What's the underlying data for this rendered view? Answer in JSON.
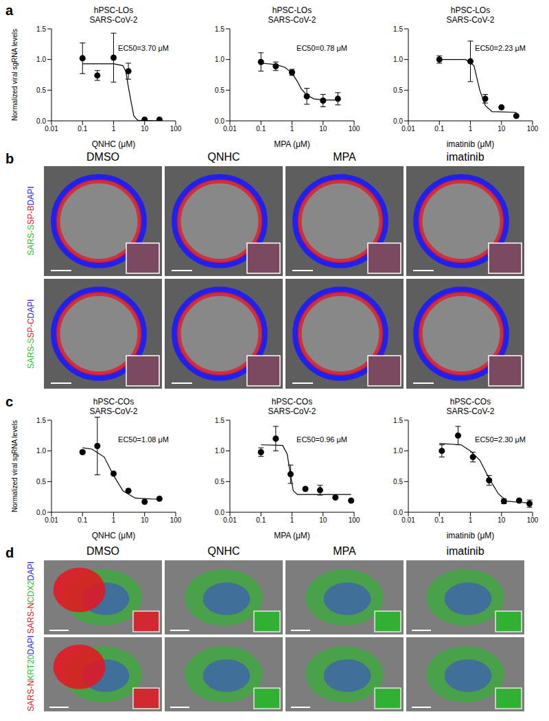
{
  "chart_data": [
    {
      "type": "scatter",
      "panel_label": "a",
      "title": "hPSC-LOs",
      "subtitle": "SARS-CoV-2",
      "x_label": "QNHC (μM)",
      "y_label": "Normalized viral sgRNA levels",
      "annotation": "EC50=3.70 μM",
      "log": "x",
      "xlim": [
        0.01,
        100
      ],
      "xticks": [
        0.01,
        0.1,
        1,
        10,
        100
      ],
      "ylim": [
        0,
        1.5
      ],
      "yticks": [
        {
          "value": 0,
          "label": "0.0"
        },
        {
          "value": 0.5,
          "label": "0.5"
        },
        {
          "value": 1,
          "label": "1.0"
        },
        {
          "value": 1.5,
          "label": "1.5"
        }
      ],
      "series": [
        {
          "type": "line",
          "color": "#000000",
          "x": [
            0.1,
            1,
            2,
            2.5,
            3,
            3.7,
            4.5,
            6,
            30
          ],
          "values": [
            0.93,
            0.93,
            0.9,
            0.8,
            0.55,
            0.3,
            0.08,
            0.01,
            0.0
          ]
        },
        {
          "type": "scatter",
          "color": "#000000",
          "x": [
            0.1,
            0.3,
            1,
            3,
            10,
            30
          ],
          "values": [
            1.02,
            0.74,
            1.03,
            0.81,
            0.02,
            0.02
          ],
          "error": [
            0.25,
            0.08,
            0.4,
            0.13,
            0,
            0
          ]
        }
      ]
    },
    {
      "type": "scatter",
      "title": "hPSC-LOs",
      "subtitle": "SARS-CoV-2",
      "x_label": "MPA (μM)",
      "annotation": "EC50=0.78 μM",
      "log": "x",
      "xlim": [
        0.01,
        100
      ],
      "xticks": [
        0.01,
        0.1,
        1,
        10,
        100
      ],
      "ylim": [
        0,
        1.5
      ],
      "yticks": [
        {
          "value": 0,
          "label": "0.0"
        },
        {
          "value": 0.5,
          "label": "0.5"
        },
        {
          "value": 1,
          "label": "1.0"
        },
        {
          "value": 1.5,
          "label": "1.5"
        }
      ],
      "series": [
        {
          "type": "line",
          "color": "#000000",
          "x": [
            0.1,
            0.3,
            0.6,
            1,
            1.5,
            2,
            3,
            5,
            10,
            30
          ],
          "values": [
            0.94,
            0.92,
            0.87,
            0.78,
            0.64,
            0.52,
            0.42,
            0.36,
            0.34,
            0.34
          ]
        },
        {
          "type": "scatter",
          "color": "#000000",
          "x": [
            0.1,
            0.3,
            1,
            3,
            10,
            30
          ],
          "values": [
            0.96,
            0.89,
            0.79,
            0.4,
            0.33,
            0.36
          ],
          "error": [
            0.15,
            0.07,
            0.05,
            0.13,
            0.1,
            0.1
          ]
        }
      ]
    },
    {
      "type": "scatter",
      "title": "hPSC-LOs",
      "subtitle": "SARS-CoV-2",
      "x_label": "imatinib (μM)",
      "annotation": "EC50=2.23 μM",
      "log": "x",
      "xlim": [
        0.01,
        100
      ],
      "xticks": [
        0.01,
        0.1,
        1,
        10,
        100
      ],
      "ylim": [
        0,
        1.5
      ],
      "yticks": [
        {
          "value": 0,
          "label": "0.0"
        },
        {
          "value": 0.5,
          "label": "0.5"
        },
        {
          "value": 1,
          "label": "1.0"
        },
        {
          "value": 1.5,
          "label": "1.5"
        }
      ],
      "series": [
        {
          "type": "line",
          "color": "#000000",
          "x": [
            0.1,
            0.7,
            1.3,
            2,
            3,
            5,
            30
          ],
          "values": [
            1.0,
            1.0,
            0.9,
            0.5,
            0.25,
            0.15,
            0.14
          ]
        },
        {
          "type": "scatter",
          "color": "#000000",
          "x": [
            0.1,
            1,
            3,
            10,
            30
          ],
          "values": [
            1.0,
            0.97,
            0.36,
            0.22,
            0.08
          ],
          "error": [
            0.06,
            0.33,
            0.07,
            0,
            0
          ]
        }
      ]
    },
    {
      "type": "scatter",
      "panel_label": "c",
      "title": "hPSC-COs",
      "subtitle": "SARS-CoV-2",
      "x_label": "QNHC (μM)",
      "y_label": "Normalized viral sgRNA levels",
      "annotation": "EC50=1.08 μM",
      "log": "x",
      "xlim": [
        0.01,
        100
      ],
      "xticks": [
        0.01,
        0.1,
        1,
        10,
        100
      ],
      "ylim": [
        0,
        1.5
      ],
      "yticks": [
        {
          "value": 0,
          "label": "0.0"
        },
        {
          "value": 0.5,
          "label": "0.5"
        },
        {
          "value": 1,
          "label": "1.0"
        },
        {
          "value": 1.5,
          "label": "1.5"
        }
      ],
      "series": [
        {
          "type": "line",
          "color": "#000000",
          "x": [
            0.1,
            0.2,
            0.5,
            1,
            2,
            5,
            30
          ],
          "values": [
            1.05,
            1.03,
            0.9,
            0.6,
            0.35,
            0.23,
            0.21
          ]
        },
        {
          "type": "scatter",
          "color": "#000000",
          "x": [
            0.1,
            0.3,
            1,
            3,
            10,
            30
          ],
          "values": [
            0.98,
            1.08,
            0.63,
            0.35,
            0.17,
            0.22
          ],
          "error": [
            0.02,
            0.47,
            0,
            0,
            0,
            0
          ]
        }
      ]
    },
    {
      "type": "scatter",
      "title": "hPSC-COs",
      "subtitle": "SARS-CoV-2",
      "x_label": "MPA (μM)",
      "annotation": "EC50=0.96 μM",
      "log": "x",
      "xlim": [
        0.01,
        100
      ],
      "xticks": [
        0.01,
        0.1,
        1,
        10,
        100
      ],
      "ylim": [
        0,
        1.5
      ],
      "yticks": [
        {
          "value": 0,
          "label": "0.0"
        },
        {
          "value": 0.5,
          "label": "0.5"
        },
        {
          "value": 1,
          "label": "1.0"
        },
        {
          "value": 1.5,
          "label": "1.5"
        }
      ],
      "series": [
        {
          "type": "line",
          "color": "#000000",
          "x": [
            0.1,
            0.5,
            0.7,
            0.9,
            1.1,
            1.5,
            80
          ],
          "values": [
            1.1,
            1.09,
            0.95,
            0.6,
            0.35,
            0.29,
            0.29
          ]
        },
        {
          "type": "scatter",
          "color": "#000000",
          "x": [
            0.1,
            0.3,
            0.9,
            2.7,
            8,
            25,
            80
          ],
          "values": [
            0.98,
            1.2,
            0.62,
            0.38,
            0.36,
            0.24,
            0.19
          ],
          "error": [
            0.07,
            0.2,
            0.15,
            0,
            0.08,
            0,
            0
          ]
        }
      ]
    },
    {
      "type": "scatter",
      "title": "hPSC-COs",
      "subtitle": "SARS-CoV-2",
      "x_label": "imatinib (μM)",
      "annotation": "EC50=2.30 μM",
      "log": "x",
      "xlim": [
        0.01,
        100
      ],
      "xticks": [
        0.01,
        0.1,
        1,
        10,
        100
      ],
      "ylim": [
        0,
        1.5
      ],
      "yticks": [
        {
          "value": 0,
          "label": "0.0"
        },
        {
          "value": 0.5,
          "label": "0.5"
        },
        {
          "value": 1,
          "label": "1.0"
        },
        {
          "value": 1.5,
          "label": "1.5"
        }
      ],
      "series": [
        {
          "type": "line",
          "color": "#000000",
          "x": [
            0.1,
            0.5,
            1,
            2,
            4,
            8,
            15,
            80
          ],
          "values": [
            1.12,
            1.1,
            1.0,
            0.85,
            0.55,
            0.3,
            0.18,
            0.15
          ]
        },
        {
          "type": "scatter",
          "color": "#000000",
          "x": [
            0.12,
            0.4,
            1.2,
            4,
            12,
            37,
            80
          ],
          "values": [
            1.0,
            1.25,
            0.9,
            0.52,
            0.18,
            0.19,
            0.14
          ],
          "error": [
            0.1,
            0.15,
            0.08,
            0.08,
            0.04,
            0,
            0.06
          ]
        }
      ]
    }
  ],
  "image_panels": [
    {
      "label": "b",
      "columns": [
        "DMSO",
        "QNHC",
        "MPA",
        "imatinib"
      ],
      "rows": [
        [
          {
            "text": "SARS-S",
            "color": "#1fbf1f"
          },
          {
            "text": "SP-B",
            "color": "#e8141e"
          },
          {
            "text": "DAPI",
            "color": "#1a1aff"
          }
        ],
        [
          {
            "text": "SARS-S",
            "color": "#1fbf1f"
          },
          {
            "text": "SP-C",
            "color": "#e8141e"
          },
          {
            "text": "DAPI",
            "color": "#1a1aff"
          }
        ]
      ]
    },
    {
      "label": "d",
      "columns": [
        "DMSO",
        "QNHC",
        "MPA",
        "imatinib"
      ],
      "rows": [
        [
          {
            "text": "SARS-N",
            "color": "#e8141e"
          },
          {
            "text": "CDX2",
            "color": "#1fbf1f"
          },
          {
            "text": "DAPI",
            "color": "#1a1aff"
          }
        ],
        [
          {
            "text": "SARS-N",
            "color": "#e8141e"
          },
          {
            "text": "KRT20",
            "color": "#1fbf1f"
          },
          {
            "text": "DAPI",
            "color": "#1a1aff"
          }
        ]
      ]
    }
  ]
}
